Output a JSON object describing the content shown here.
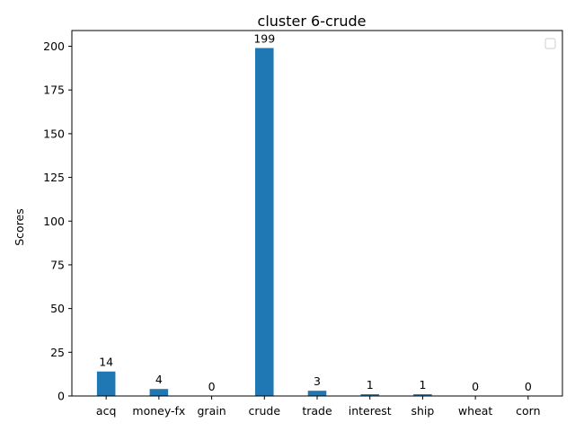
{
  "chart_data": {
    "type": "bar",
    "title": "cluster 6-crude",
    "xlabel": "",
    "ylabel": "Scores",
    "categories": [
      "acq",
      "money-fx",
      "grain",
      "crude",
      "trade",
      "interest",
      "ship",
      "wheat",
      "corn"
    ],
    "values": [
      14,
      4,
      0,
      199,
      3,
      1,
      1,
      0,
      0
    ],
    "value_labels": [
      "14",
      "4",
      "0",
      "199",
      "3",
      "1",
      "1",
      "0",
      "0"
    ],
    "ylim": [
      0,
      209
    ],
    "yticks": [
      0,
      25,
      50,
      75,
      100,
      125,
      150,
      175,
      200
    ],
    "ytick_labels": [
      "0",
      "25",
      "50",
      "75",
      "100",
      "125",
      "150",
      "175",
      "200"
    ],
    "grid": false,
    "legend": "top-right (empty)",
    "bar_color": "#1f77b4"
  }
}
